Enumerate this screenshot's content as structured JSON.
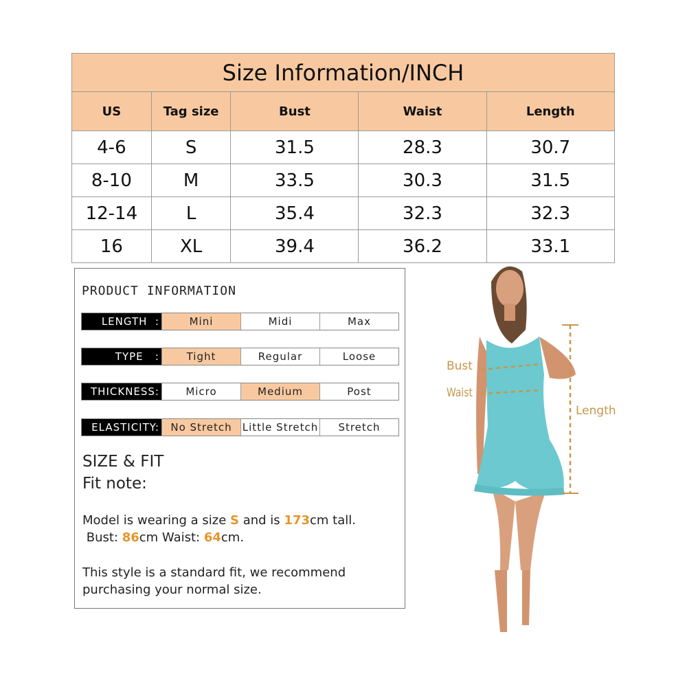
{
  "size_table": {
    "title": "Size Information/INCH",
    "headers": [
      "US",
      "Tag size",
      "Bust",
      "Waist",
      "Length"
    ],
    "rows": [
      [
        "4-6",
        "S",
        "31.5",
        "28.3",
        "30.7"
      ],
      [
        "8-10",
        "M",
        "33.5",
        "30.3",
        "31.5"
      ],
      [
        "12-14",
        "L",
        "35.4",
        "32.3",
        "32.3"
      ],
      [
        "16",
        "XL",
        "39.4",
        "36.2",
        "33.1"
      ]
    ]
  },
  "product_info": {
    "title": "PRODUCT INFORMATION",
    "attributes": [
      {
        "label": "LENGTH  :",
        "options": [
          "Mini",
          "Midi",
          "Max"
        ],
        "selected": 0
      },
      {
        "label": "TYPE   :",
        "options": [
          "Tight",
          "Regular",
          "Loose"
        ],
        "selected": 0
      },
      {
        "label": "THICKNESS:",
        "options": [
          "Micro",
          "Medium",
          "Post"
        ],
        "selected": 1
      },
      {
        "label": "ELASTICITY:",
        "options": [
          "No Stretch",
          "Little Stretch",
          "Stretch"
        ],
        "selected": 0
      }
    ],
    "size_fit_title": "SIZE & FIT",
    "fit_note": "Fit note:",
    "model_line1_a": "Model is wearing a size ",
    "model_size": "S",
    "model_line1_b": " and is ",
    "model_height": "173",
    "model_line1_c": "cm tall.",
    "model_line2_a": " Bust: ",
    "model_bust": "86",
    "model_line2_b": "cm Waist: ",
    "model_waist": "64",
    "model_line2_c": "cm.",
    "style_note": "This style is a standard fit, we recommend purchasing your normal size."
  },
  "figure": {
    "bust_label": "Bust",
    "waist_label": "Waist",
    "length_label": "Length"
  },
  "colors": {
    "header": "#f8c9a0",
    "highlight": "#e8952a",
    "measure": "#c8964a",
    "dress": "#6cc9cf"
  }
}
